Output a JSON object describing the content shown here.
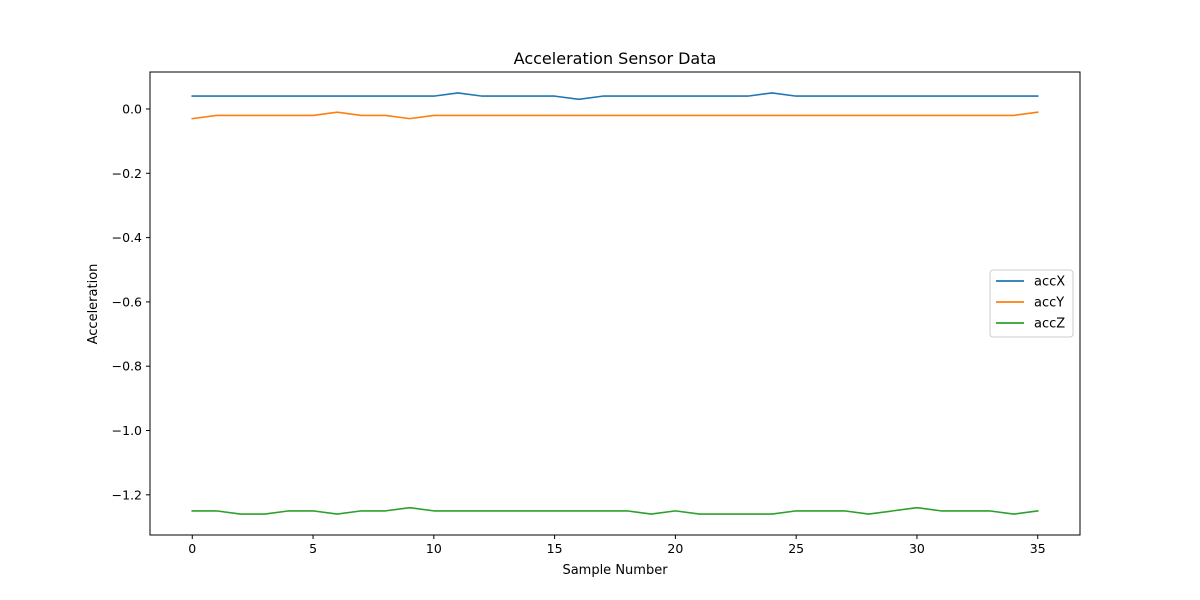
{
  "chart_data": {
    "type": "line",
    "title": "Acceleration Sensor Data",
    "xlabel": "Sample Number",
    "ylabel": "Acceleration",
    "xlim": [
      -1.75,
      36.75
    ],
    "ylim": [
      -1.325,
      0.115
    ],
    "xticks": [
      0,
      5,
      10,
      15,
      20,
      25,
      30,
      35
    ],
    "yticks": [
      0.0,
      -0.2,
      -0.4,
      -0.6,
      -0.8,
      -1.0,
      -1.2
    ],
    "ytick_labels": [
      "0.0",
      "−0.2",
      "−0.4",
      "−0.6",
      "−0.8",
      "−1.0",
      "−1.2"
    ],
    "grid": false,
    "legend_position": "center-right",
    "x": [
      0,
      1,
      2,
      3,
      4,
      5,
      6,
      7,
      8,
      9,
      10,
      11,
      12,
      13,
      14,
      15,
      16,
      17,
      18,
      19,
      20,
      21,
      22,
      23,
      24,
      25,
      26,
      27,
      28,
      29,
      30,
      31,
      32,
      33,
      34,
      35
    ],
    "series": [
      {
        "name": "accX",
        "color": "#1f77b4",
        "values": [
          0.04,
          0.04,
          0.04,
          0.04,
          0.04,
          0.04,
          0.04,
          0.04,
          0.04,
          0.04,
          0.04,
          0.05,
          0.04,
          0.04,
          0.04,
          0.04,
          0.03,
          0.04,
          0.04,
          0.04,
          0.04,
          0.04,
          0.04,
          0.04,
          0.05,
          0.04,
          0.04,
          0.04,
          0.04,
          0.04,
          0.04,
          0.04,
          0.04,
          0.04,
          0.04,
          0.04
        ]
      },
      {
        "name": "accY",
        "color": "#ff7f0e",
        "values": [
          -0.03,
          -0.02,
          -0.02,
          -0.02,
          -0.02,
          -0.02,
          -0.01,
          -0.02,
          -0.02,
          -0.03,
          -0.02,
          -0.02,
          -0.02,
          -0.02,
          -0.02,
          -0.02,
          -0.02,
          -0.02,
          -0.02,
          -0.02,
          -0.02,
          -0.02,
          -0.02,
          -0.02,
          -0.02,
          -0.02,
          -0.02,
          -0.02,
          -0.02,
          -0.02,
          -0.02,
          -0.02,
          -0.02,
          -0.02,
          -0.02,
          -0.01
        ]
      },
      {
        "name": "accZ",
        "color": "#2ca02c",
        "values": [
          -1.25,
          -1.25,
          -1.26,
          -1.26,
          -1.25,
          -1.25,
          -1.26,
          -1.25,
          -1.25,
          -1.24,
          -1.25,
          -1.25,
          -1.25,
          -1.25,
          -1.25,
          -1.25,
          -1.25,
          -1.25,
          -1.25,
          -1.26,
          -1.25,
          -1.26,
          -1.26,
          -1.26,
          -1.26,
          -1.25,
          -1.25,
          -1.25,
          -1.26,
          -1.25,
          -1.24,
          -1.25,
          -1.25,
          -1.25,
          -1.26,
          -1.25
        ]
      }
    ]
  }
}
